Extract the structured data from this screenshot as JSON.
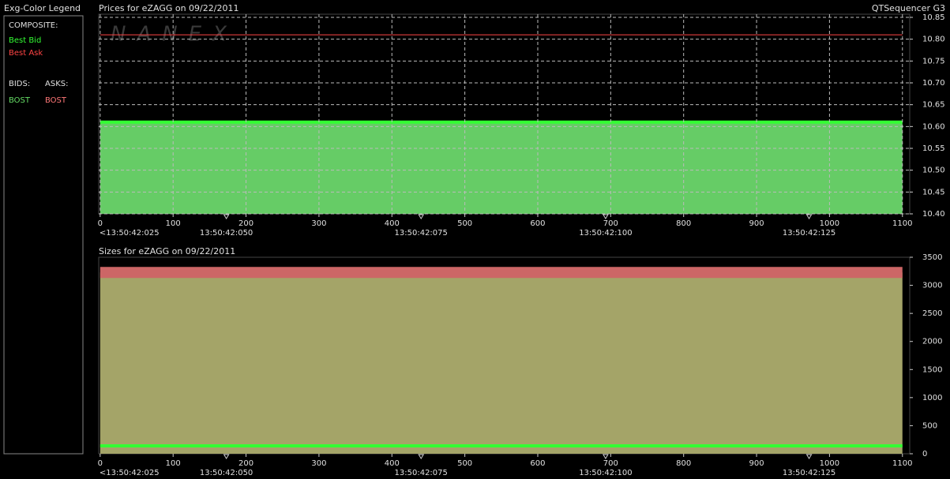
{
  "app_title": "QTSequencer G3",
  "watermark": "NANEX",
  "legend": {
    "title": "Exg-Color Legend",
    "composite_label": "COMPOSITE:",
    "bids_label": "BIDS:",
    "asks_label": "ASKS:",
    "bids": [
      {
        "name": "BOST",
        "color": "#66dd66"
      }
    ],
    "asks": [
      {
        "name": "BOST",
        "color": "#ff7777"
      }
    ]
  },
  "chart_data": [
    {
      "type": "area",
      "title": "Prices for  eZAGG  on  09/22/2011",
      "x": [
        0,
        1100
      ],
      "xlim": [
        -2,
        1110
      ],
      "xticks": [
        0,
        100,
        200,
        300,
        400,
        500,
        600,
        700,
        800,
        900,
        1000,
        1100
      ],
      "xmarks": [
        {
          "value": 0,
          "label": "<13:50:42:025"
        },
        {
          "value": 173,
          "label": "13:50:42:050"
        },
        {
          "value": 440,
          "label": "13:50:42:075"
        },
        {
          "value": 693,
          "label": "13:50:42:100"
        },
        {
          "value": 972,
          "label": "13:50:42:125"
        }
      ],
      "ylim": [
        10.4,
        10.85
      ],
      "yticks": [
        {
          "value": 10.4,
          "label": "10.40"
        },
        10.45,
        {
          "value": 10.5,
          "label": "10.50"
        },
        10.55,
        {
          "value": 10.6,
          "label": "10.60"
        },
        10.65,
        {
          "value": 10.7,
          "label": "10.70"
        },
        10.75,
        {
          "value": 10.8,
          "label": "10.80"
        },
        10.85
      ],
      "grid": true,
      "series": [
        {
          "name": "Best Bid",
          "color": "#33ff33",
          "fill": "#66cc66",
          "line_width": 4,
          "values": [
            10.61,
            10.61
          ]
        },
        {
          "name": "Best Ask",
          "color": "#ff4444",
          "line_width": 1,
          "values": [
            10.81,
            10.81
          ]
        }
      ]
    },
    {
      "type": "area",
      "title": "Sizes for  eZAGG  on  09/22/2011",
      "x": [
        0,
        1100
      ],
      "xlim": [
        -2,
        1110
      ],
      "xticks": [
        0,
        100,
        200,
        300,
        400,
        500,
        600,
        700,
        800,
        900,
        1000,
        1100
      ],
      "xmarks": [
        {
          "value": 0,
          "label": "<13:50:42:025"
        },
        {
          "value": 173,
          "label": "13:50:42:050"
        },
        {
          "value": 440,
          "label": "13:50:42:075"
        },
        {
          "value": 693,
          "label": "13:50:42:100"
        },
        {
          "value": 972,
          "label": "13:50:42:125"
        }
      ],
      "ylim": [
        0,
        3500
      ],
      "yticks": [
        0,
        500,
        1000,
        1500,
        2000,
        2500,
        3000,
        3500
      ],
      "grid": false,
      "series": [
        {
          "name": "Best Ask",
          "color": "#cc6666",
          "fill": "#a4a468",
          "line_width": 14,
          "values": [
            3230,
            3230
          ]
        },
        {
          "name": "Best Bid",
          "color": "#33ff33",
          "line_width": 4,
          "values": [
            140,
            140
          ]
        }
      ]
    }
  ]
}
